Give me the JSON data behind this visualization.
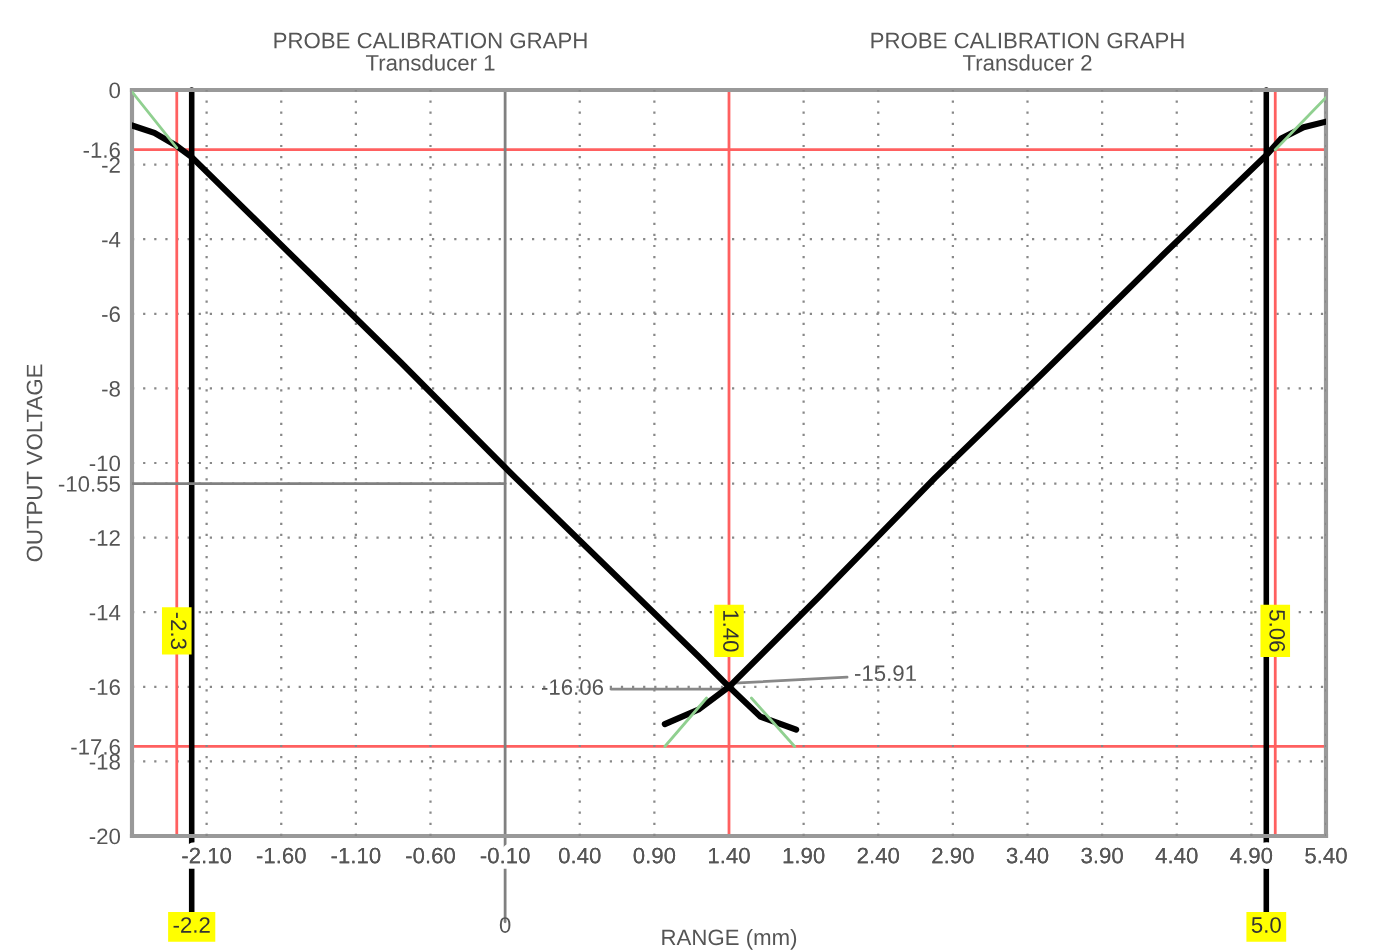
{
  "chart_data": {
    "type": "line",
    "xlabel": "RANGE (mm)",
    "ylabel": "OUTPUT VOLTAGE",
    "annotations": [
      "PROBE CALIBRATION GRAPH\nTransducer 1",
      "PROBE CALIBRATION GRAPH\nTransducer 2",
      {
        "text": "-16.06",
        "x": 1.4,
        "y": -16.06
      },
      {
        "text": "-15.91",
        "x": 1.4,
        "y": -15.91
      }
    ],
    "series": [
      {
        "color": "#000000",
        "x": [
          -2.6,
          -2.45,
          -2.3,
          -2.2,
          -1.5,
          -0.8,
          -0.03,
          0.7,
          1.2,
          1.4,
          1.61,
          1.85
        ],
        "values": [
          -0.95,
          -1.15,
          -1.5,
          -1.8,
          -4.55,
          -7.3,
          -10.4,
          -13.25,
          -15.2,
          -16.0,
          -16.8,
          -17.15
        ]
      },
      {
        "color": "#000000",
        "x": [
          0.97,
          1.2,
          1.4,
          2.0,
          2.78,
          3.5,
          4.3,
          5.0,
          5.1,
          5.25,
          5.4
        ],
        "values": [
          -17.0,
          -16.6,
          -16.0,
          -13.6,
          -10.4,
          -7.6,
          -4.45,
          -1.75,
          -1.3,
          -1.0,
          -0.85
        ]
      },
      {
        "color": "#90d090",
        "x": [
          -2.6,
          -2.3
        ],
        "values": [
          -0.05,
          -1.55
        ]
      },
      {
        "color": "#90d090",
        "x": [
          0.97,
          1.25
        ],
        "values": [
          -17.6,
          -16.3
        ]
      },
      {
        "color": "#90d090",
        "x": [
          1.55,
          1.84
        ],
        "values": [
          -16.3,
          -17.6
        ]
      },
      {
        "color": "#90d090",
        "x": [
          5.06,
          5.4
        ],
        "values": [
          -1.6,
          -0.2
        ]
      },
      {
        "color": "#808080",
        "x": [
          -2.6,
          -0.1
        ],
        "values": [
          -10.55,
          -10.55
        ]
      }
    ],
    "ref_lines": [
      {
        "axis": "y",
        "value": -1.6,
        "color": "#ff6060"
      },
      {
        "axis": "y",
        "value": -17.6,
        "color": "#ff6060"
      },
      {
        "axis": "x",
        "value": -2.3,
        "label": "-2.3",
        "color": "#ff6060"
      },
      {
        "axis": "x",
        "value": 1.4,
        "label": "1.40",
        "color": "#ff6060"
      },
      {
        "axis": "x",
        "value": 5.06,
        "label": "5.06",
        "color": "#ff6060"
      },
      {
        "axis": "x",
        "value": -2.2,
        "label": "-2.2",
        "color": "#000000"
      },
      {
        "axis": "x",
        "value": 5.0,
        "label": "5.0",
        "color": "#000000"
      },
      {
        "axis": "x",
        "value": -0.1,
        "label": "0",
        "color": "#808080"
      }
    ],
    "xlim": [
      -2.6,
      5.4
    ],
    "xticks": [
      {
        "value": -2.1,
        "label": "-2.10"
      },
      {
        "value": -1.6,
        "label": "-1.60"
      },
      {
        "value": -1.1,
        "label": "-1.10"
      },
      {
        "value": -0.6,
        "label": "-0.60"
      },
      {
        "value": -0.1,
        "label": "-0.10"
      },
      {
        "value": 0.4,
        "label": "0.40"
      },
      {
        "value": 0.9,
        "label": "0.90"
      },
      {
        "value": 1.4,
        "label": "1.40"
      },
      {
        "value": 1.9,
        "label": "1.90"
      },
      {
        "value": 2.4,
        "label": "2.40"
      },
      {
        "value": 2.9,
        "label": "2.90"
      },
      {
        "value": 3.4,
        "label": "3.40"
      },
      {
        "value": 3.9,
        "label": "3.90"
      },
      {
        "value": 4.4,
        "label": "4.40"
      },
      {
        "value": 4.9,
        "label": "4.90"
      },
      {
        "value": 5.4,
        "label": "5.40"
      }
    ],
    "ylim": [
      -20,
      0
    ],
    "yticks": [
      0,
      -1.6,
      -2,
      -4,
      -6,
      -8,
      -10,
      -10.55,
      -12,
      -14,
      -16,
      -17.6,
      -18,
      -20
    ],
    "grid": true,
    "marker": "none",
    "line_style": "solid",
    "legend": false
  }
}
